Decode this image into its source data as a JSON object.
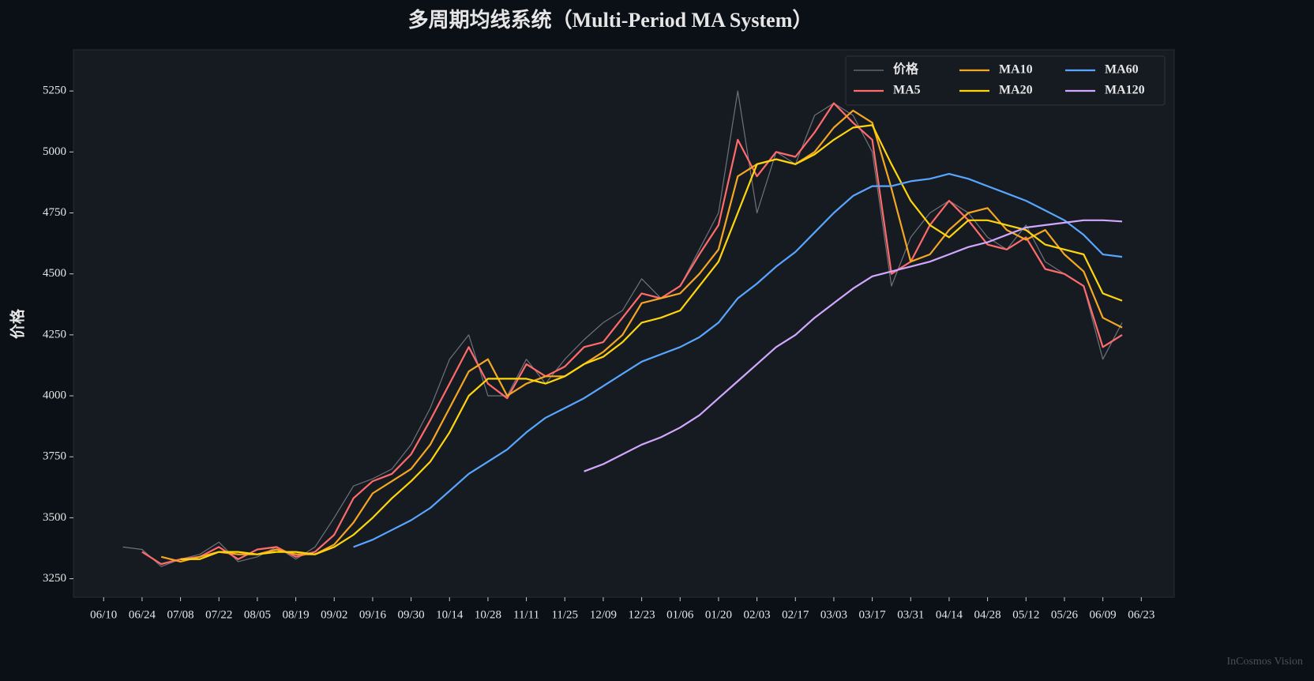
{
  "chart_data": {
    "type": "line",
    "title": "多周期均线系统（Multi-Period MA System）",
    "y_label": "价格",
    "watermark": "InCosmos Vision",
    "legend": "upper right",
    "grid": false,
    "x": [
      "06/17",
      "06/24",
      "07/01",
      "07/08",
      "07/15",
      "07/22",
      "07/29",
      "08/05",
      "08/12",
      "08/19",
      "08/26",
      "09/02",
      "09/09",
      "09/16",
      "09/23",
      "09/30",
      "10/07",
      "10/14",
      "10/21",
      "10/28",
      "11/04",
      "11/11",
      "11/18",
      "11/25",
      "12/02",
      "12/09",
      "12/16",
      "12/23",
      "12/30",
      "01/06",
      "01/13",
      "01/20",
      "01/27",
      "02/03",
      "02/10",
      "02/17",
      "02/24",
      "03/03",
      "03/10",
      "03/17",
      "03/24",
      "03/31",
      "04/07",
      "04/14",
      "04/21",
      "04/28",
      "05/05",
      "05/12",
      "05/19",
      "05/26",
      "06/02",
      "06/09",
      "06/16"
    ],
    "xlim": [
      "05/30",
      "07/05"
    ],
    "xticks": [
      "06/10",
      "06/24",
      "07/08",
      "07/22",
      "08/05",
      "08/19",
      "09/02",
      "09/16",
      "09/30",
      "10/14",
      "10/28",
      "11/11",
      "11/25",
      "12/09",
      "12/23",
      "01/06",
      "01/20",
      "02/03",
      "02/17",
      "03/03",
      "03/17",
      "03/31",
      "04/14",
      "04/28",
      "05/12",
      "05/26",
      "06/09",
      "06/23"
    ],
    "ylim": [
      3174,
      5419
    ],
    "yticks": [
      3250,
      3500,
      3750,
      4000,
      4250,
      4500,
      4750,
      5000,
      5250
    ],
    "series": [
      {
        "name": "价格",
        "color": "#6e737b",
        "width": 1.2,
        "values": [
          3380,
          3370,
          3300,
          3330,
          3350,
          3400,
          3320,
          3340,
          3380,
          3330,
          3380,
          3500,
          3630,
          3660,
          3700,
          3800,
          3950,
          4150,
          4250,
          4000,
          4000,
          4150,
          4050,
          4150,
          4230,
          4300,
          4350,
          4480,
          4400,
          4450,
          4600,
          4750,
          5250,
          4750,
          5000,
          4950,
          5150,
          5200,
          5150,
          5000,
          4450,
          4650,
          4750,
          4800,
          4750,
          4650,
          4600,
          4700,
          4550,
          4500,
          4450,
          4150,
          4300
        ]
      },
      {
        "name": "MA5",
        "color": "#ff6b6b",
        "width": 2.2,
        "values": [
          null,
          3360,
          3310,
          3330,
          3340,
          3380,
          3330,
          3370,
          3380,
          3340,
          3360,
          3430,
          3580,
          3650,
          3680,
          3760,
          3900,
          4050,
          4200,
          4050,
          3990,
          4130,
          4080,
          4120,
          4200,
          4220,
          4320,
          4420,
          4400,
          4450,
          4580,
          4700,
          5050,
          4900,
          5000,
          4980,
          5080,
          5200,
          5120,
          5050,
          4500,
          4550,
          4700,
          4800,
          4720,
          4620,
          4600,
          4650,
          4520,
          4500,
          4450,
          4200,
          4250
        ]
      },
      {
        "name": "MA10",
        "color": "#f5a623",
        "width": 2.2,
        "values": [
          null,
          null,
          3340,
          3320,
          3340,
          3360,
          3350,
          3350,
          3370,
          3350,
          3350,
          3390,
          3480,
          3600,
          3650,
          3700,
          3800,
          3950,
          4100,
          4150,
          4000,
          4050,
          4080,
          4080,
          4130,
          4180,
          4250,
          4380,
          4400,
          4420,
          4500,
          4600,
          4900,
          4950,
          4970,
          4950,
          5000,
          5100,
          5170,
          5120,
          4850,
          4550,
          4580,
          4680,
          4750,
          4770,
          4680,
          4640,
          4680,
          4580,
          4510,
          4320,
          4280
        ]
      },
      {
        "name": "MA20",
        "color": "#ffd60a",
        "width": 2.2,
        "values": [
          null,
          null,
          null,
          3330,
          3330,
          3360,
          3360,
          3350,
          3360,
          3360,
          3350,
          3380,
          3430,
          3500,
          3580,
          3650,
          3730,
          3850,
          4000,
          4070,
          4070,
          4070,
          4050,
          4080,
          4130,
          4160,
          4220,
          4300,
          4320,
          4350,
          4450,
          4550,
          4750,
          4950,
          4970,
          4950,
          4990,
          5050,
          5100,
          5110,
          4950,
          4800,
          4700,
          4650,
          4720,
          4720,
          4700,
          4680,
          4620,
          4600,
          4580,
          4420,
          4390
        ]
      },
      {
        "name": "MA60",
        "color": "#58a6ff",
        "width": 2.2,
        "values": [
          null,
          null,
          null,
          null,
          null,
          null,
          null,
          null,
          null,
          null,
          null,
          null,
          3380,
          3410,
          3450,
          3490,
          3540,
          3610,
          3680,
          3730,
          3780,
          3850,
          3910,
          3950,
          3990,
          4040,
          4090,
          4140,
          4170,
          4200,
          4240,
          4300,
          4400,
          4460,
          4530,
          4590,
          4670,
          4750,
          4820,
          4860,
          4860,
          4880,
          4890,
          4910,
          4890,
          4860,
          4830,
          4800,
          4760,
          4720,
          4660,
          4580,
          4570
        ]
      },
      {
        "name": "MA120",
        "color": "#d2a8ff",
        "width": 2.2,
        "values": [
          null,
          null,
          null,
          null,
          null,
          null,
          null,
          null,
          null,
          null,
          null,
          null,
          null,
          null,
          null,
          null,
          null,
          null,
          null,
          null,
          null,
          null,
          null,
          null,
          3690,
          3720,
          3760,
          3800,
          3830,
          3870,
          3920,
          3990,
          4060,
          4130,
          4200,
          4250,
          4320,
          4380,
          4440,
          4490,
          4510,
          4530,
          4550,
          4580,
          4610,
          4630,
          4660,
          4690,
          4700,
          4710,
          4720,
          4720,
          4715
        ]
      }
    ]
  }
}
